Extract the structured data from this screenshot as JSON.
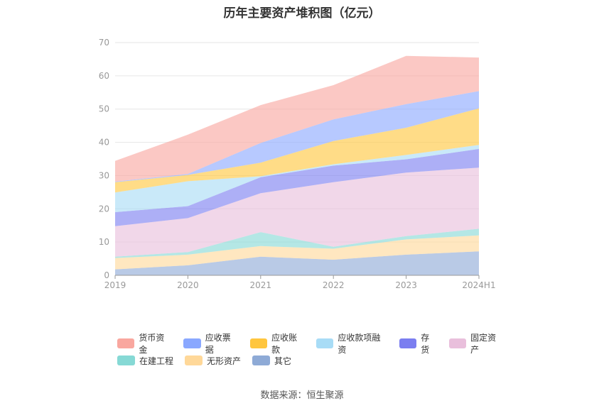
{
  "title": "历年主要资产堆积图（亿元）",
  "source": "数据来源：恒生聚源",
  "chart_data": {
    "type": "area",
    "stacked": true,
    "title": "历年主要资产堆积图（亿元）",
    "xlabel": "",
    "ylabel": "",
    "ylim": [
      0,
      70
    ],
    "yticks": [
      0,
      10,
      20,
      30,
      40,
      50,
      60,
      70
    ],
    "grid": true,
    "legend_position": "bottom",
    "x": [
      "2019",
      "2020",
      "2021",
      "2022",
      "2023",
      "2024H1"
    ],
    "series": [
      {
        "name": "其它",
        "color": "#8eaad6",
        "values": [
          1.8,
          3.0,
          5.6,
          4.7,
          6.2,
          7.2
        ]
      },
      {
        "name": "无形资产",
        "color": "#ffd899",
        "values": [
          3.4,
          3.2,
          3.2,
          3.3,
          4.6,
          4.8
        ]
      },
      {
        "name": "在建工程",
        "color": "#86d9d5",
        "values": [
          0.4,
          0.8,
          4.2,
          0.6,
          1.0,
          2.0
        ]
      },
      {
        "name": "固定资产",
        "color": "#e9bfdc",
        "values": [
          9.2,
          10.2,
          11.7,
          19.4,
          19.1,
          18.4
        ]
      },
      {
        "name": "存货",
        "color": "#7b7ef0",
        "values": [
          4.2,
          3.6,
          4.8,
          5.0,
          4.0,
          5.6
        ]
      },
      {
        "name": "应收款项融资",
        "color": "#a8dcf6",
        "values": [
          5.9,
          7.5,
          0.3,
          0.4,
          1.3,
          1.2
        ]
      },
      {
        "name": "应收账款",
        "color": "#ffc63e",
        "values": [
          3.1,
          1.9,
          4.1,
          7.0,
          8.2,
          11.0
        ]
      },
      {
        "name": "应收票据",
        "color": "#8aa8ff",
        "values": [
          0.2,
          0.3,
          5.9,
          6.5,
          7.1,
          5.2
        ]
      },
      {
        "name": "货币资金",
        "color": "#f9a79f",
        "values": [
          6.2,
          11.8,
          11.4,
          10.3,
          14.5,
          10.1
        ]
      }
    ]
  },
  "legend_rows": [
    [
      "货币资金",
      "应收票据",
      "应收账款",
      "应收款项融资",
      "存货",
      "固定资产"
    ],
    [
      "在建工程",
      "无形资产",
      "其它"
    ]
  ]
}
